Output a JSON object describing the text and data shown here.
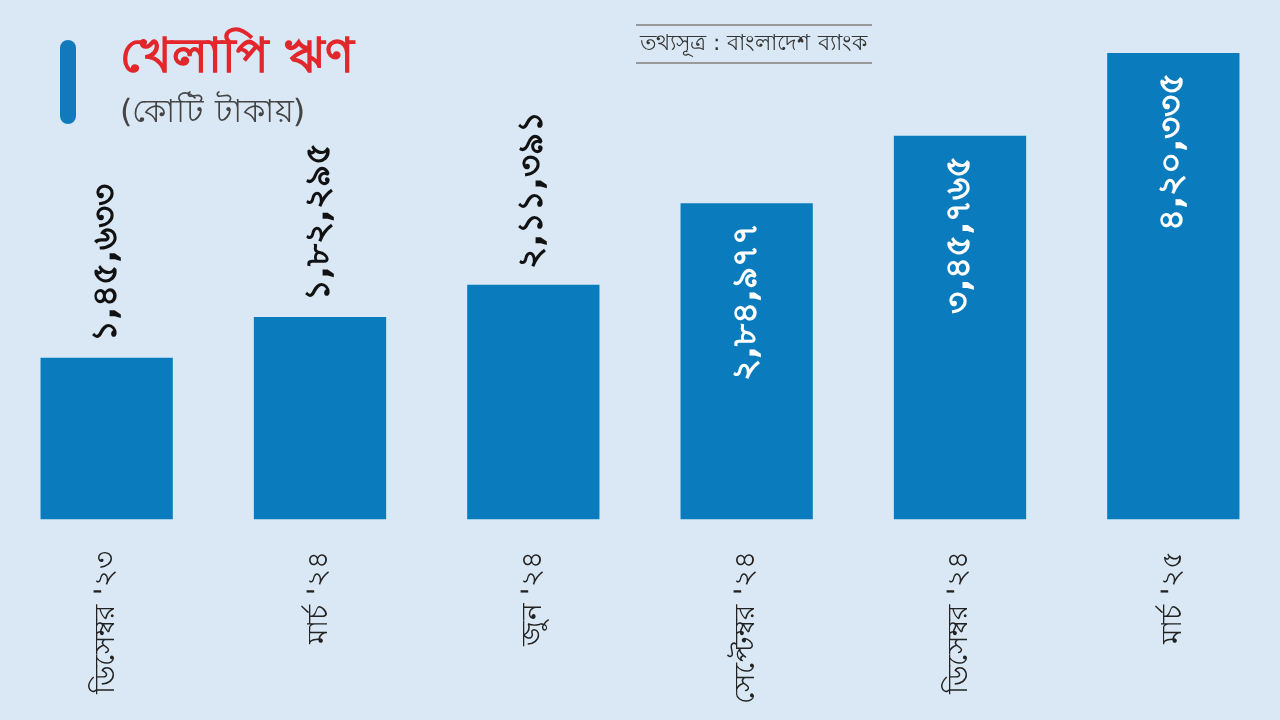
{
  "chart_data": {
    "type": "bar",
    "title": "খেলাপি ঋণ",
    "subtitle": "(কোটি টাকায়)",
    "annotations": [
      "তথ্যসূত্র : বাংলাদেশ ব্যাংক"
    ],
    "categories": [
      "ডিসেম্বর '২৩",
      "মার্চ '২৪",
      "জুন '২৪",
      "সেপ্টেম্বর '২৪",
      "ডিসেম্বর '২৪",
      "মার্চ '২৫"
    ],
    "values": [
      145633,
      182295,
      211391,
      284977,
      345765,
      420335
    ],
    "value_labels": [
      "১,৪৫,৬৩৩",
      "১,৮২,২৯৫",
      "২,১১,৩৯১",
      "২,৮৪,৯৭৭",
      "৩,৪৫,৭৬৫",
      "৪,২০,৩৩৫"
    ],
    "color": "#0a7bbd",
    "legend": false
  }
}
